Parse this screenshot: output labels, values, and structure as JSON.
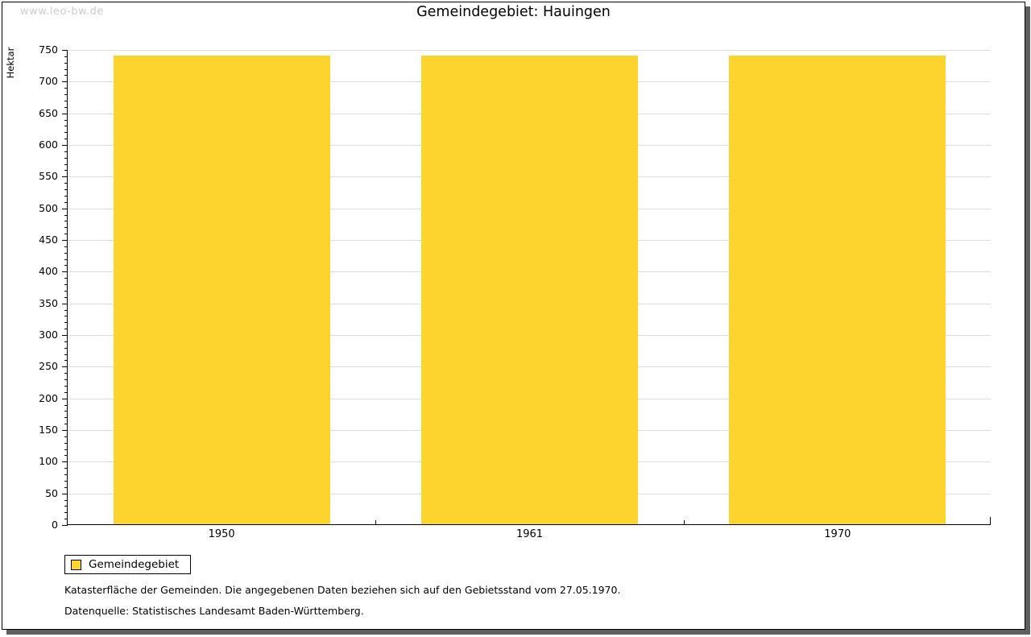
{
  "watermark": "www.leo-bw.de",
  "title": "Gemeindegebiet: Hauingen",
  "chart_data": {
    "type": "bar",
    "title": "Gemeindegebiet: Hauingen",
    "categories": [
      "1950",
      "1961",
      "1970"
    ],
    "series": [
      {
        "name": "Gemeindegebiet",
        "values": [
          740,
          740,
          740
        ]
      }
    ],
    "xlabel": "",
    "ylabel": "Hektar",
    "ylim": [
      0,
      750
    ],
    "yticks": [
      0,
      50,
      100,
      150,
      200,
      250,
      300,
      350,
      400,
      450,
      500,
      550,
      600,
      650,
      700,
      750
    ],
    "minor_tick_step": 10,
    "grid": true,
    "legend_position": "bottom-left",
    "bar_width_frac": 0.703,
    "bar_color": "#fdd32e"
  },
  "legend": {
    "items": [
      {
        "label": "Gemeindegebiet",
        "color": "#fdd32e"
      }
    ]
  },
  "footer": {
    "line1": "Katasterfläche der Gemeinden. Die angegebenen Daten beziehen sich auf den Gebietsstand vom 27.05.1970.",
    "line2": "Datenquelle: Statistisches Landesamt Baden-Württemberg."
  },
  "colors": {
    "bar": "#fdd32e",
    "grid": "#dddddd",
    "axis": "#000000",
    "shadow": "#5f5f5f",
    "watermark": "#cccccc",
    "background": "#ffffff"
  }
}
